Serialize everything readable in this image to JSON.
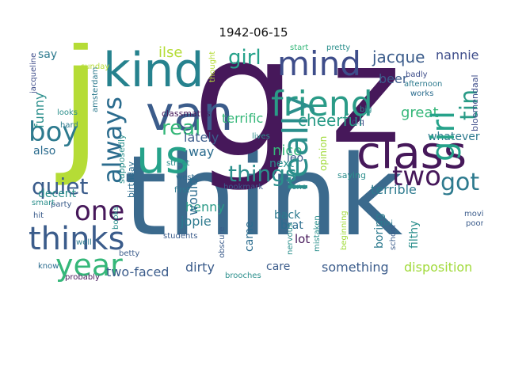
{
  "figure": {
    "title": "1942-06-15"
  },
  "wordcloud": {
    "words": [
      {
        "text": "think",
        "color": "#3b6a8d"
      },
      {
        "text": "g",
        "color": "#46185a"
      },
      {
        "text": "z",
        "color": "#46185a"
      },
      {
        "text": "j",
        "color": "#b5dc36"
      },
      {
        "text": "kind",
        "color": "#26828e"
      },
      {
        "text": "van",
        "color": "#3b5c8b"
      },
      {
        "text": "us",
        "color": "#26a28a"
      },
      {
        "text": "class",
        "color": "#46185a"
      },
      {
        "text": "friend",
        "color": "#2a9b87"
      },
      {
        "text": "mind",
        "color": "#3e4d8a"
      },
      {
        "text": "really",
        "color": "#2b8f8c"
      },
      {
        "text": "girl",
        "color": "#26a28a"
      },
      {
        "text": "always",
        "color": "#2b6c8e"
      },
      {
        "text": "best",
        "color": "#2b8f8c"
      },
      {
        "text": "boy",
        "color": "#2d7a8e"
      },
      {
        "text": "thinks",
        "color": "#3b5c8b"
      },
      {
        "text": "one",
        "color": "#46185a"
      },
      {
        "text": "year",
        "color": "#35b779"
      },
      {
        "text": "quiet",
        "color": "#3b5c8b"
      },
      {
        "text": "two",
        "color": "#46185a"
      },
      {
        "text": "got",
        "color": "#2d7a8e"
      },
      {
        "text": "things",
        "color": "#2b8f8c"
      },
      {
        "text": "real",
        "color": "#35b779"
      },
      {
        "text": "jacque",
        "color": "#3b5c8b"
      },
      {
        "text": "nannie",
        "color": "#3e4d8a"
      },
      {
        "text": "tin",
        "color": "#2a9b87"
      },
      {
        "text": "would",
        "color": "#2b6c8e"
      },
      {
        "text": "funny",
        "color": "#2b8f8c"
      },
      {
        "text": "say",
        "color": "#2d7a8e"
      },
      {
        "text": "ilse",
        "color": "#b5dc36"
      },
      {
        "text": "beer",
        "color": "#3b5c8b"
      },
      {
        "text": "cheerful",
        "color": "#2a9b87"
      },
      {
        "text": "great",
        "color": "#35b779"
      },
      {
        "text": "terrific",
        "color": "#35b779"
      },
      {
        "text": "lately",
        "color": "#3b5c8b"
      },
      {
        "text": "way",
        "color": "#2b6c8e"
      },
      {
        "text": "whatever",
        "color": "#2d7a8e"
      },
      {
        "text": "next",
        "color": "#2b8f8c"
      },
      {
        "text": "nice",
        "color": "#35b779"
      },
      {
        "text": "also",
        "color": "#2b6c8e"
      },
      {
        "text": "decent",
        "color": "#2b8f8c"
      },
      {
        "text": "henny",
        "color": "#2a9b87"
      },
      {
        "text": "jopie",
        "color": "#2d7a8e"
      },
      {
        "text": "back",
        "color": "#2d7a8e"
      },
      {
        "text": "brat",
        "color": "#2b6c8e"
      },
      {
        "text": "lot",
        "color": "#46185a"
      },
      {
        "text": "leo",
        "color": "#3b5c8b"
      },
      {
        "text": "came",
        "color": "#2b6c8e"
      },
      {
        "text": "terrible",
        "color": "#2d7a8e"
      },
      {
        "text": "boring",
        "color": "#2d7a8e"
      },
      {
        "text": "filthy",
        "color": "#2b8f8c"
      },
      {
        "text": "disposition",
        "color": "#a0da39"
      },
      {
        "text": "something",
        "color": "#3b5c8b"
      },
      {
        "text": "care",
        "color": "#3b5c8b"
      },
      {
        "text": "dirty",
        "color": "#3b5c8b"
      },
      {
        "text": "two-faced",
        "color": "#3b5c8b"
      },
      {
        "text": "opinion",
        "color": "#a0da39"
      },
      {
        "text": "sunday",
        "color": "#b5dc36"
      },
      {
        "text": "party",
        "color": "#3b5c8b"
      },
      {
        "text": "hit",
        "color": "#3b5c8b"
      },
      {
        "text": "smart",
        "color": "#2b8f8c"
      },
      {
        "text": "know",
        "color": "#2b6c8e"
      },
      {
        "text": "betty",
        "color": "#3b5c8b"
      },
      {
        "text": "probably",
        "color": "#46185a"
      },
      {
        "text": "students",
        "color": "#3b5c8b"
      },
      {
        "text": "first",
        "color": "#2d7a8e"
      },
      {
        "text": "street",
        "color": "#2b8f8c"
      },
      {
        "text": "west",
        "color": "#2b6c8e"
      },
      {
        "text": "classmates",
        "color": "#46185a"
      },
      {
        "text": "birthday",
        "color": "#2b6c8e"
      },
      {
        "text": "supposedly",
        "color": "#2b8f8c"
      },
      {
        "text": "looks",
        "color": "#2b8f8c"
      },
      {
        "text": "hard",
        "color": "#2d7a8e"
      },
      {
        "text": "well",
        "color": "#2d7a8e"
      },
      {
        "text": "books",
        "color": "#2b8f8c"
      },
      {
        "text": "amsterdam",
        "color": "#2d7a8e"
      },
      {
        "text": "jacqueline",
        "color": "#3e4d8a"
      },
      {
        "text": "thought",
        "color": "#b5dc36"
      },
      {
        "text": "pretty",
        "color": "#2b8f8c"
      },
      {
        "text": "start",
        "color": "#35b779"
      },
      {
        "text": "big",
        "color": "#2b8f8c"
      },
      {
        "text": "works",
        "color": "#2b6c8e"
      },
      {
        "text": "afternoon",
        "color": "#2d7a8e"
      },
      {
        "text": "badly",
        "color": "#3e4d8a"
      },
      {
        "text": "saying",
        "color": "#2b8f8c"
      },
      {
        "text": "bookmark",
        "color": "#3b5c8b"
      },
      {
        "text": "none",
        "color": "#2d7a8e"
      },
      {
        "text": "lives",
        "color": "#2b8f8c"
      },
      {
        "text": "movie",
        "color": "#3b5c8b"
      },
      {
        "text": "poor",
        "color": "#3b5c8b"
      },
      {
        "text": "school",
        "color": "#3b5c8b"
      },
      {
        "text": "mistaken",
        "color": "#2b8f8c"
      },
      {
        "text": "nervous",
        "color": "#2b8f8c"
      },
      {
        "text": "obscure",
        "color": "#3b5c8b"
      },
      {
        "text": "brooches",
        "color": "#2b8f8c"
      },
      {
        "text": "bloemendaal",
        "color": "#3e4d8a"
      },
      {
        "text": "d.q",
        "color": "#3e4d8a"
      },
      {
        "text": "rini",
        "color": "#2d7a8e"
      },
      {
        "text": "beginning",
        "color": "#a0da39"
      }
    ]
  }
}
